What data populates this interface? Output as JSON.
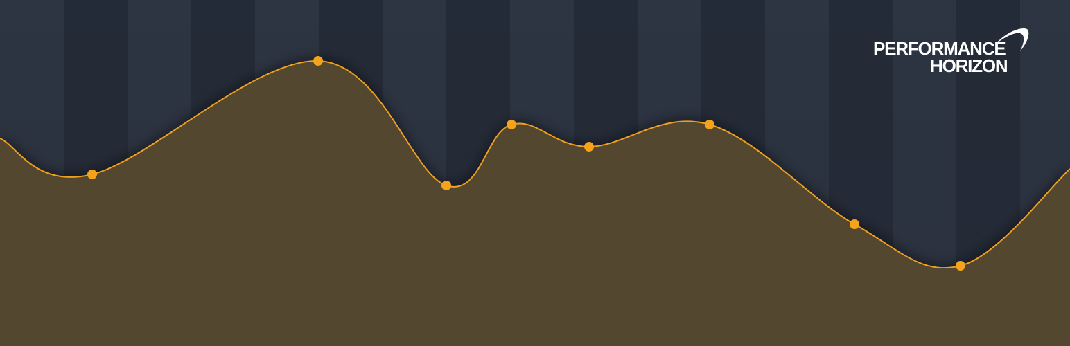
{
  "brand": {
    "line1": "PERFORMANCE",
    "line2": "HORIZON",
    "logo_icon": "swoosh-arc-icon"
  },
  "colors": {
    "background": "#262d39",
    "stripe_dark": "#232a35",
    "stripe_light": "#2f3644",
    "area_fill": "#55492f",
    "line": "#f0a020",
    "point": "#f5a31a",
    "logo_text": "#ffffff"
  },
  "chart_data": {
    "type": "area",
    "series": [
      {
        "values": [
          0.52,
          0.93,
          0.48,
          0.7,
          0.62,
          0.7,
          0.34,
          0.19
        ]
      }
    ],
    "ylim": [
      0,
      1
    ],
    "grid": false,
    "legend": "none"
  }
}
